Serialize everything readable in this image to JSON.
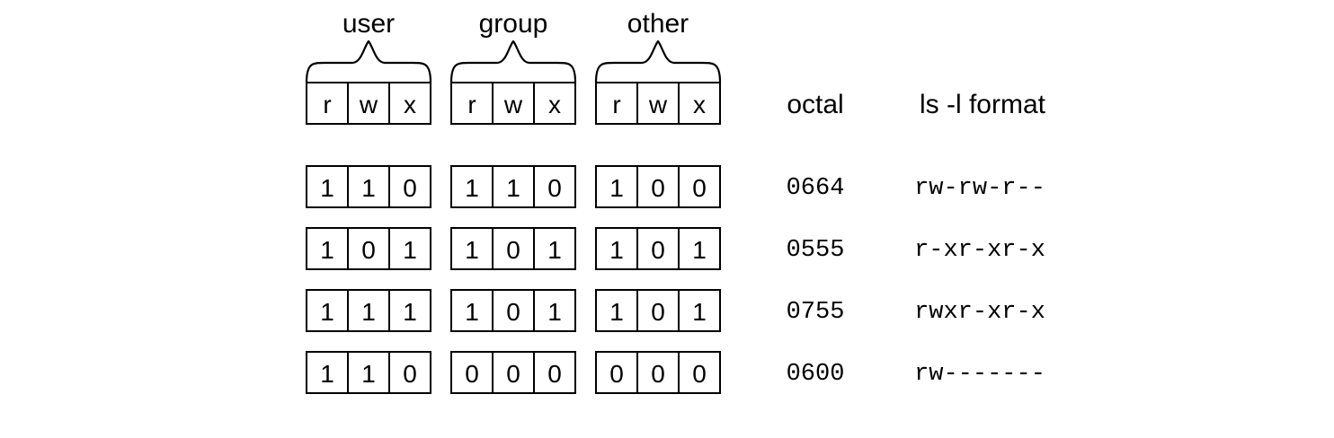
{
  "groups": [
    {
      "label": "user",
      "perms": [
        "r",
        "w",
        "x"
      ]
    },
    {
      "label": "group",
      "perms": [
        "r",
        "w",
        "x"
      ]
    },
    {
      "label": "other",
      "perms": [
        "r",
        "w",
        "x"
      ]
    }
  ],
  "headers": {
    "octal": "octal",
    "ls_format": "ls -l format"
  },
  "rows": [
    {
      "bits": [
        [
          "1",
          "1",
          "0"
        ],
        [
          "1",
          "1",
          "0"
        ],
        [
          "1",
          "0",
          "0"
        ]
      ],
      "octal": "0664",
      "ls": "rw-rw-r--"
    },
    {
      "bits": [
        [
          "1",
          "0",
          "1"
        ],
        [
          "1",
          "0",
          "1"
        ],
        [
          "1",
          "0",
          "1"
        ]
      ],
      "octal": "0555",
      "ls": "r-xr-xr-x"
    },
    {
      "bits": [
        [
          "1",
          "1",
          "1"
        ],
        [
          "1",
          "0",
          "1"
        ],
        [
          "1",
          "0",
          "1"
        ]
      ],
      "octal": "0755",
      "ls": "rwxr-xr-x"
    },
    {
      "bits": [
        [
          "1",
          "1",
          "0"
        ],
        [
          "0",
          "0",
          "0"
        ],
        [
          "0",
          "0",
          "0"
        ]
      ],
      "octal": "0600",
      "ls": "rw-------"
    }
  ]
}
